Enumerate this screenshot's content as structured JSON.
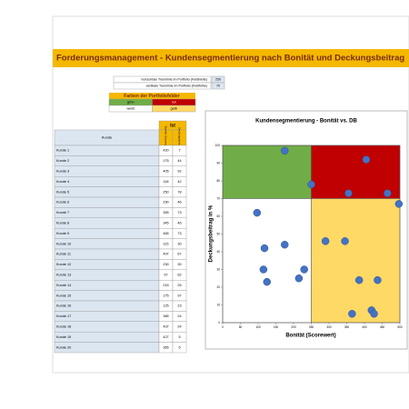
{
  "title": "Forderungsmanagement - Kundensegmentierung nach Bonität und Deckungsbeitrag",
  "thresholds": [
    {
      "label": "horizontale Trennlinie im Portfolio (Feldbreite)",
      "value": 250
    },
    {
      "label": "vertikale Trennlinie im Portfolio (Feldhöhe)",
      "value": 70
    }
  ],
  "legend": {
    "title": "Farben der Portfoliofelder",
    "items": [
      {
        "label": "grün",
        "color": "#70ad47"
      },
      {
        "label": "rot",
        "color": "#c00000"
      },
      {
        "label": "weiß",
        "color": "#ffffff"
      },
      {
        "label": "gelb",
        "color": "#ffd966"
      }
    ]
  },
  "table": {
    "group": "Ist",
    "columns": [
      "Kunde",
      "Bonität (Scorewert)",
      "Deckungsbeitrag"
    ],
    "rows": [
      [
        "Kunde 1",
        420,
        7
      ],
      [
        "Kunde 2",
        175,
        44
      ],
      [
        "Kunde 3",
        405,
        92
      ],
      [
        "Kunde 4",
        118,
        42
      ],
      [
        "Kunde 5",
        250,
        78
      ],
      [
        "Kunde 6",
        290,
        46
      ],
      [
        "Kunde 7",
        355,
        73
      ],
      [
        "Kunde 8",
        345,
        46
      ],
      [
        "Kunde 9",
        465,
        73
      ],
      [
        "Kunde 10",
        115,
        30
      ],
      [
        "Kunde 11",
        497,
        67
      ],
      [
        "Kunde 12",
        230,
        30
      ],
      [
        "Kunde 13",
        97,
        62
      ],
      [
        "Kunde 14",
        215,
        25
      ],
      [
        "Kunde 15",
        175,
        97
      ],
      [
        "Kunde 16",
        125,
        23
      ],
      [
        "Kunde 17",
        385,
        24
      ],
      [
        "Kunde 18",
        437,
        24
      ],
      [
        "Kunde 19",
        427,
        5
      ],
      [
        "Kunde 20",
        365,
        5
      ]
    ]
  },
  "chart_data": {
    "type": "scatter",
    "title": "Kundensegmentierung - Bonität vs. DB",
    "x_label": "Bonität (Scorewert)",
    "y_label": "Deckungsbeitrag in %",
    "xlim": [
      0,
      500
    ],
    "ylim": [
      0,
      100
    ],
    "xticks": [
      0,
      50,
      100,
      150,
      200,
      250,
      300,
      350,
      400,
      450,
      500
    ],
    "yticks": [
      0,
      10,
      20,
      30,
      40,
      50,
      60,
      70,
      80,
      90,
      100
    ],
    "color": "#4472c4"
  }
}
